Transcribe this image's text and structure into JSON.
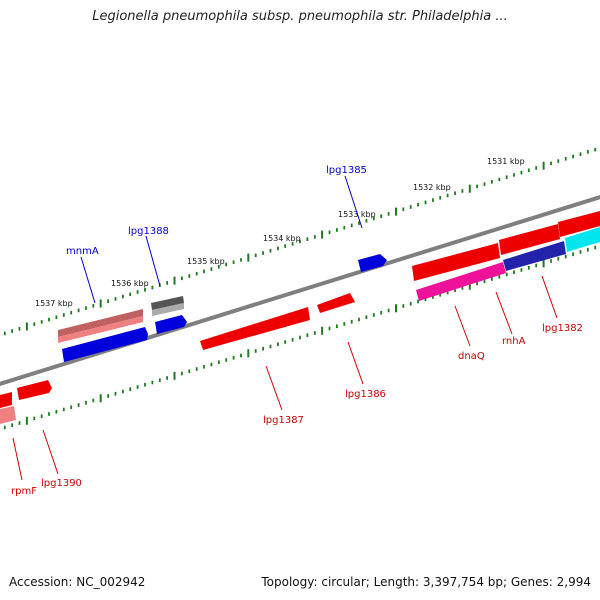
{
  "title": "Legionella pneumophila subsp. pneumophila str. Philadelphia ...",
  "scale_labels": [
    "1537 kbp",
    "1536 kbp",
    "1535 kbp",
    "1534 kbp",
    "1533 kbp",
    "1532 kbp",
    "1531 kbp"
  ],
  "genes": {
    "mnmA": "mnmA",
    "lpg1388": "lpg1388",
    "lpg1385": "lpg1385",
    "lpg1387": "lpg1387",
    "lpg1386": "lpg1386",
    "dnaQ": "dnaQ",
    "rnhA": "rnhA",
    "lpg1382": "lpg1382",
    "lpg1390": "lpg1390",
    "rpmF": "rpmF"
  },
  "colors": {
    "backbone": "#7f7f7f",
    "tick": "#1f7a1f",
    "gene_red": "#ee0000",
    "gene_pink": "#ee8080",
    "gene_blue": "#0000dd",
    "gene_gray": "#555555",
    "gene_magenta": "#ee1199",
    "gene_cyan": "#00e5ee",
    "label_blue": "#0000cc",
    "label_red": "#cc0000"
  },
  "footer": {
    "accession": "Accession: NC_002942",
    "summary": "Topology: circular; Length: 3,397,754 bp; Genes: 2,994"
  }
}
